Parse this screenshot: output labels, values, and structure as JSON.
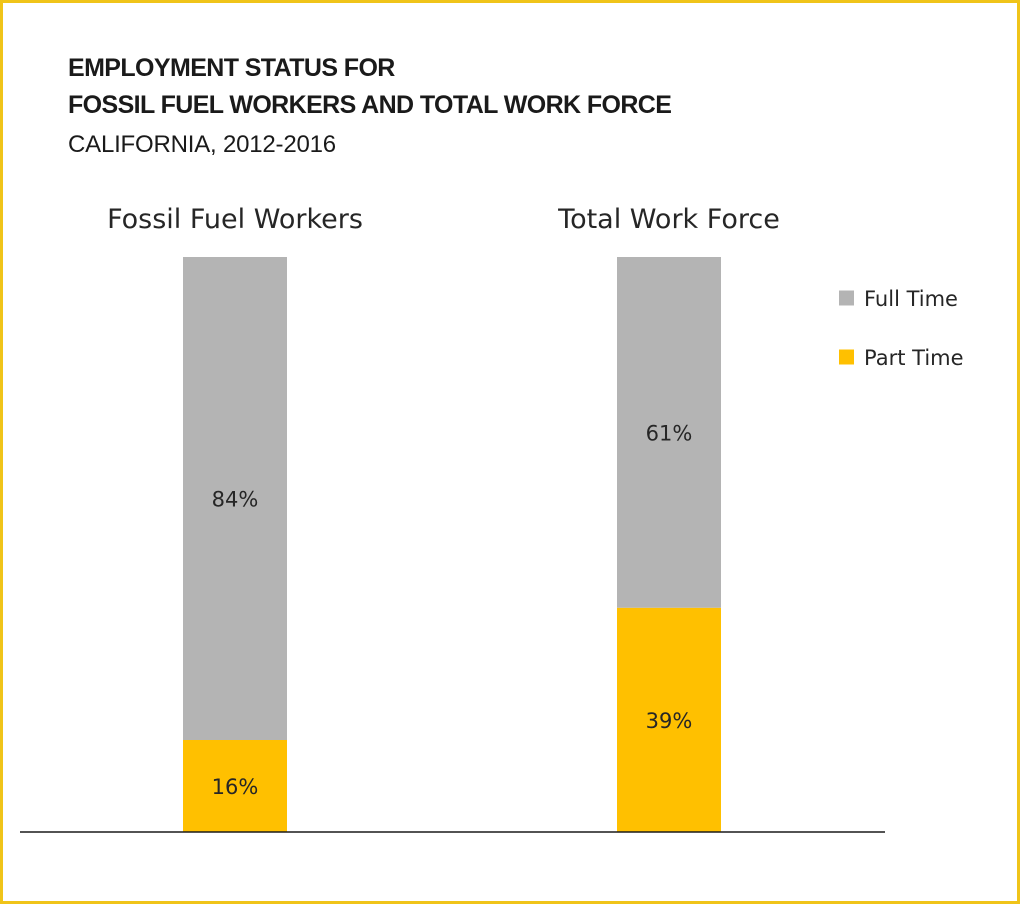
{
  "header": {
    "title_line1": "EMPLOYMENT STATUS FOR",
    "title_line2": "FOSSIL FUEL WORKERS AND TOTAL WORK FORCE",
    "subtitle": "CALIFORNIA, 2012-2016"
  },
  "chart_data": {
    "type": "bar",
    "stacked": true,
    "categories": [
      "Fossil Fuel Workers",
      "Total Work Force"
    ],
    "series": [
      {
        "name": "Part Time",
        "values": [
          16,
          39
        ],
        "labels": [
          "16%",
          "39%"
        ],
        "color": "#ffc000"
      },
      {
        "name": "Full Time",
        "values": [
          84,
          61
        ],
        "labels": [
          "84%",
          "61%"
        ],
        "color": "#b4b4b4"
      }
    ],
    "ylim": [
      0,
      100
    ],
    "unit": "%",
    "grid": false,
    "legend": {
      "placement": "right",
      "entries": [
        {
          "name": "Full Time",
          "color": "#b4b4b4"
        },
        {
          "name": "Part Time",
          "color": "#ffc000"
        }
      ]
    },
    "frame_color": "#f0c419"
  }
}
